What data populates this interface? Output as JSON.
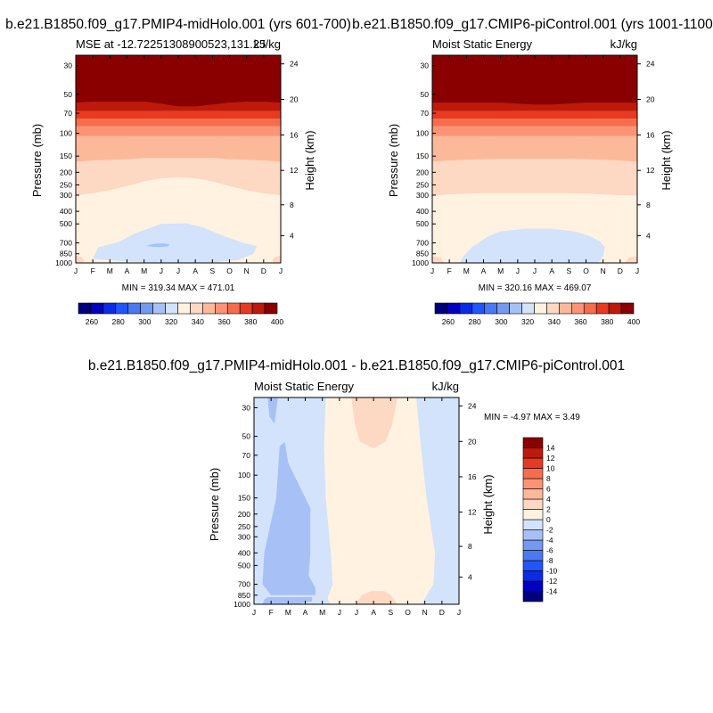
{
  "chart_data": [
    {
      "type": "heatmap",
      "title": "b.e21.B1850.f09_g17.PMIP4-midHolo.001 (yrs 601-700)",
      "left_string": "MSE at -12.72251308900523,131.25",
      "right_string": "kJ/kg",
      "xlabel": "",
      "ylabel": "Pressure (mb)",
      "ylabel_right": "Height (km)",
      "x_ticks": [
        "J",
        "F",
        "M",
        "A",
        "M",
        "J",
        "J",
        "A",
        "S",
        "O",
        "N",
        "D",
        "J"
      ],
      "y_ticks": [
        30,
        50,
        70,
        100,
        150,
        200,
        250,
        300,
        400,
        500,
        700,
        850,
        1000
      ],
      "ylim": [
        1000,
        25
      ],
      "height_ticks": [
        4,
        8,
        12,
        16,
        20,
        24
      ],
      "y_scale": "log",
      "stats": "MIN = 319.34 MAX = 471.01",
      "colorbar": {
        "orientation": "horizontal",
        "levels": [
          250,
          260,
          270,
          280,
          290,
          300,
          310,
          320,
          330,
          340,
          350,
          360,
          370,
          380,
          390,
          400
        ],
        "labels": [
          "260",
          "280",
          "300",
          "320",
          "340",
          "360",
          "380",
          "400"
        ],
        "colors": [
          "#00007d",
          "#0000bf",
          "#0a2ce6",
          "#2156ff",
          "#4a79f2",
          "#7399f0",
          "#a7c1f6",
          "#d2e3fb",
          "#fff2e0",
          "#fdd8c2",
          "#fcb99a",
          "#fb9475",
          "#f56d4d",
          "#e63a22",
          "#bd1a0c",
          "#8a0000"
        ]
      },
      "bands": [
        {
          "level": 340,
          "color": "#fdd8c2",
          "profile": [
            300,
            290,
            275,
            255,
            235,
            222,
            218,
            222,
            235,
            255,
            275,
            290,
            300
          ]
        },
        {
          "level": 350,
          "color": "#fcb99a",
          "profile": [
            165,
            162,
            160,
            158,
            155,
            155,
            155,
            155,
            155,
            158,
            160,
            162,
            165
          ]
        },
        {
          "level": 360,
          "color": "#fb9475",
          "profile": [
            105,
            105,
            105,
            105,
            105,
            105,
            105,
            105,
            105,
            105,
            105,
            105,
            105
          ]
        },
        {
          "level": 370,
          "color": "#f56d4d",
          "profile": [
            88,
            88,
            88,
            88,
            88,
            88,
            88,
            88,
            88,
            88,
            88,
            88,
            88
          ]
        },
        {
          "level": 380,
          "color": "#e63a22",
          "profile": [
            77,
            77,
            77,
            77,
            77,
            77,
            77,
            77,
            77,
            77,
            77,
            77,
            77
          ]
        },
        {
          "level": 390,
          "color": "#bd1a0c",
          "profile": [
            67,
            67,
            67,
            67,
            67,
            67,
            67,
            67,
            67,
            67,
            67,
            67,
            67
          ]
        },
        {
          "level": 400,
          "color": "#8a0000",
          "profile": [
            58,
            57,
            57,
            57,
            57,
            59,
            62,
            62,
            60,
            58,
            57,
            57,
            58
          ]
        }
      ],
      "closed_contours": [
        {
          "level": 330,
          "color": "#d2e3fb",
          "points": [
            [
              1.0,
              930
            ],
            [
              1.3,
              760
            ],
            [
              2.5,
              690
            ],
            [
              3.5,
              590
            ],
            [
              5.0,
              500
            ],
            [
              6.5,
              495
            ],
            [
              7.5,
              535
            ],
            [
              8.8,
              630
            ],
            [
              9.8,
              700
            ],
            [
              10.6,
              740
            ],
            [
              10.4,
              850
            ],
            [
              9.5,
              950
            ],
            [
              8.0,
              990
            ],
            [
              6.0,
              1000
            ],
            [
              4.0,
              990
            ],
            [
              2.5,
              965
            ]
          ]
        },
        {
          "level": 320,
          "color": "#a7c1f6",
          "points": [
            [
              4.1,
              740
            ],
            [
              4.6,
              712
            ],
            [
              5.2,
              708
            ],
            [
              5.5,
              720
            ],
            [
              5.4,
              745
            ],
            [
              4.8,
              755
            ]
          ]
        },
        {
          "level": 340,
          "color": "#fdd8c2",
          "points": [
            [
              0,
              880
            ],
            [
              0.35,
              900
            ],
            [
              0.5,
              960
            ],
            [
              0.4,
              1000
            ],
            [
              0,
              1000
            ]
          ]
        },
        {
          "level": 340,
          "color": "#fdd8c2",
          "points": [
            [
              12,
              880
            ],
            [
              11.65,
              900
            ],
            [
              11.5,
              960
            ],
            [
              11.6,
              1000
            ],
            [
              12,
              1000
            ]
          ]
        }
      ]
    },
    {
      "type": "heatmap",
      "title": "b.e21.B1850.f09_g17.CMIP6-piControl.001 (yrs 1001-1100)",
      "left_string": "Moist Static Energy",
      "right_string": "kJ/kg",
      "xlabel": "",
      "ylabel": "Pressure (mb)",
      "ylabel_right": "Height (km)",
      "x_ticks": [
        "J",
        "F",
        "M",
        "A",
        "M",
        "J",
        "J",
        "A",
        "S",
        "O",
        "N",
        "D",
        "J"
      ],
      "y_ticks": [
        30,
        50,
        70,
        100,
        150,
        200,
        250,
        300,
        400,
        500,
        700,
        850,
        1000
      ],
      "ylim": [
        1000,
        25
      ],
      "height_ticks": [
        4,
        8,
        12,
        16,
        20,
        24
      ],
      "y_scale": "log",
      "stats": "MIN = 320.16 MAX = 469.07",
      "colorbar": {
        "orientation": "horizontal",
        "levels": [
          250,
          260,
          270,
          280,
          290,
          300,
          310,
          320,
          330,
          340,
          350,
          360,
          370,
          380,
          390,
          400
        ],
        "labels": [
          "260",
          "280",
          "300",
          "320",
          "340",
          "360",
          "380",
          "400"
        ],
        "colors": [
          "#00007d",
          "#0000bf",
          "#0a2ce6",
          "#2156ff",
          "#4a79f2",
          "#7399f0",
          "#a7c1f6",
          "#d2e3fb",
          "#fff2e0",
          "#fdd8c2",
          "#fcb99a",
          "#fb9475",
          "#f56d4d",
          "#e63a22",
          "#bd1a0c",
          "#8a0000"
        ]
      },
      "bands": [
        {
          "level": 340,
          "color": "#fdd8c2",
          "profile": [
            302,
            296,
            292,
            290,
            290,
            290,
            290,
            290,
            290,
            292,
            296,
            300,
            302
          ]
        },
        {
          "level": 350,
          "color": "#fcb99a",
          "profile": [
            165,
            162,
            160,
            158,
            157,
            157,
            157,
            157,
            157,
            158,
            160,
            162,
            165
          ]
        },
        {
          "level": 360,
          "color": "#fb9475",
          "profile": [
            105,
            105,
            105,
            105,
            105,
            105,
            105,
            105,
            105,
            105,
            105,
            105,
            105
          ]
        },
        {
          "level": 370,
          "color": "#f56d4d",
          "profile": [
            88,
            88,
            88,
            88,
            88,
            88,
            88,
            88,
            88,
            88,
            88,
            88,
            88
          ]
        },
        {
          "level": 380,
          "color": "#e63a22",
          "profile": [
            77,
            77,
            77,
            77,
            77,
            77,
            77,
            77,
            77,
            77,
            77,
            77,
            77
          ]
        },
        {
          "level": 390,
          "color": "#bd1a0c",
          "profile": [
            67,
            67,
            67,
            67,
            67,
            67,
            67,
            67,
            67,
            67,
            67,
            67,
            67
          ]
        },
        {
          "level": 400,
          "color": "#8a0000",
          "profile": [
            58,
            58,
            58,
            58,
            58,
            59,
            60,
            60,
            59,
            58,
            58,
            58,
            58
          ]
        }
      ],
      "closed_contours": [
        {
          "level": 330,
          "color": "#d2e3fb",
          "points": [
            [
              1.6,
              1000
            ],
            [
              1.8,
              900
            ],
            [
              2.3,
              760
            ],
            [
              3.2,
              630
            ],
            [
              4.0,
              570
            ],
            [
              5.5,
              545
            ],
            [
              7.0,
              545
            ],
            [
              8.3,
              570
            ],
            [
              9.2,
              620
            ],
            [
              9.8,
              680
            ],
            [
              10.1,
              760
            ],
            [
              10.0,
              900
            ],
            [
              9.7,
              1000
            ]
          ]
        },
        {
          "level": 340,
          "color": "#fdd8c2",
          "points": [
            [
              0,
              890
            ],
            [
              0.5,
              910
            ],
            [
              0.7,
              1000
            ],
            [
              0,
              1000
            ]
          ]
        },
        {
          "level": 340,
          "color": "#fdd8c2",
          "points": [
            [
              12,
              890
            ],
            [
              11.5,
              910
            ],
            [
              11.3,
              1000
            ],
            [
              12,
              1000
            ]
          ]
        }
      ]
    },
    {
      "type": "heatmap",
      "title": "b.e21.B1850.f09_g17.PMIP4-midHolo.001 - b.e21.B1850.f09_g17.CMIP6-piControl.001",
      "left_string": "Moist Static Energy",
      "right_string": "kJ/kg",
      "xlabel": "",
      "ylabel": "Pressure (mb)",
      "ylabel_right": "Height (km)",
      "x_ticks": [
        "J",
        "F",
        "M",
        "A",
        "M",
        "J",
        "J",
        "A",
        "S",
        "O",
        "N",
        "D",
        "J"
      ],
      "y_ticks": [
        30,
        50,
        70,
        100,
        150,
        200,
        250,
        300,
        400,
        500,
        700,
        850,
        1000
      ],
      "ylim": [
        1000,
        25
      ],
      "height_ticks": [
        4,
        8,
        12,
        16,
        20,
        24
      ],
      "y_scale": "log",
      "stats": "MIN =   -4.97 MAX =    3.49",
      "colorbar": {
        "orientation": "vertical",
        "levels": [
          -16,
          -14,
          -12,
          -10,
          -8,
          -6,
          -4,
          -2,
          0,
          2,
          4,
          6,
          8,
          10,
          12,
          14,
          16
        ],
        "labels": [
          "-14",
          "-12",
          "-10",
          "-8",
          "-6",
          "-4",
          "-2",
          "0",
          "2",
          "4",
          "6",
          "8",
          "10",
          "12",
          "14"
        ],
        "colors": [
          "#00007d",
          "#0000bf",
          "#0a2ce6",
          "#2156ff",
          "#4a79f2",
          "#7399f0",
          "#a7c1f6",
          "#d2e3fb",
          "#fff2e0",
          "#fdd8c2",
          "#fcb99a",
          "#fb9475",
          "#f56d4d",
          "#e63a22",
          "#bd1a0c",
          "#8a0000"
        ]
      },
      "background_color": "#d2e3fb",
      "polygons": [
        {
          "level": 0,
          "color": "#fff2e0",
          "points": [
            [
              4.2,
              25
            ],
            [
              12,
              25
            ],
            [
              12,
              1000
            ],
            [
              4.5,
              1000
            ],
            [
              4.3,
              900
            ],
            [
              4.6,
              700
            ],
            [
              4.5,
              400
            ],
            [
              4.2,
              150
            ],
            [
              4.1,
              60
            ]
          ]
        },
        {
          "level": 2,
          "color": "#fdd8c2",
          "points": [
            [
              5.7,
              25
            ],
            [
              8.4,
              25
            ],
            [
              8.1,
              40
            ],
            [
              7.7,
              55
            ],
            [
              7.0,
              62
            ],
            [
              6.2,
              55
            ],
            [
              5.9,
              40
            ]
          ]
        },
        {
          "level": 2,
          "color": "#fdd8c2",
          "points": [
            [
              6.0,
              1000
            ],
            [
              6.3,
              850
            ],
            [
              6.9,
              790
            ],
            [
              7.6,
              790
            ],
            [
              8.0,
              850
            ],
            [
              8.4,
              1000
            ]
          ]
        },
        {
          "level": 0,
          "color": "#d2e3fb",
          "points": [
            [
              9.5,
              25
            ],
            [
              9.8,
              65
            ],
            [
              10.1,
              150
            ],
            [
              10.6,
              400
            ],
            [
              10.5,
              700
            ],
            [
              9.8,
              1000
            ],
            [
              12,
              1000
            ],
            [
              12,
              25
            ]
          ]
        },
        {
          "level": -2,
          "color": "#a7c1f6",
          "points": [
            [
              0.8,
              25
            ],
            [
              1.4,
              25
            ],
            [
              1.2,
              40
            ],
            [
              0.9,
              35
            ]
          ]
        },
        {
          "level": -2,
          "color": "#a7c1f6",
          "points": [
            [
              1.5,
              60
            ],
            [
              1.8,
              55
            ],
            [
              2.0,
              80
            ],
            [
              2.5,
              110
            ],
            [
              3.3,
              180
            ],
            [
              3.3,
              400
            ],
            [
              3.2,
              600
            ],
            [
              3.6,
              750
            ],
            [
              3.6,
              850
            ],
            [
              1.0,
              850
            ],
            [
              0.5,
              700
            ],
            [
              0.6,
              400
            ],
            [
              1.3,
              150
            ]
          ]
        },
        {
          "level": -2,
          "color": "#a7c1f6",
          "points": [
            [
              0.8,
              880
            ],
            [
              3.4,
              880
            ],
            [
              3.4,
              950
            ],
            [
              2.5,
              1000
            ],
            [
              0.5,
              1000
            ],
            [
              0.6,
              920
            ]
          ]
        }
      ]
    }
  ]
}
